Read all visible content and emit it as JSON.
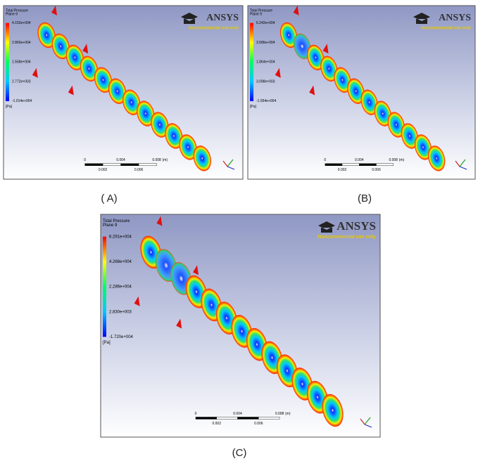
{
  "panels": [
    {
      "label": "( A)",
      "legend_title": "Total Pressure",
      "legend_subtitle": "Plane 9",
      "legend_values": [
        "4.152e+004",
        "2.860e+004",
        "1.568e+004",
        "2.772e+003",
        "-1.014e+004"
      ],
      "legend_unit": "[Pa]",
      "logo": "ANSYS",
      "logo_note": "Noncommercial use only",
      "scale_top": [
        "0",
        "0.004",
        "0.008"
      ],
      "scale_unit": "(m)",
      "scale_bottom": [
        "0.002",
        "0.006"
      ]
    },
    {
      "label": "(B)",
      "legend_title": "Total Pressure",
      "legend_subtitle": "Plane 9",
      "legend_values": [
        "6.242e+004",
        "3.586e+004",
        "1.864e+004",
        "3.098e+003",
        "-1.554e+004"
      ],
      "legend_unit": "[Pa]",
      "logo": "ANSYS",
      "logo_note": "Noncommercial use only",
      "scale_top": [
        "0",
        "0.004",
        "0.008"
      ],
      "scale_unit": "(m)",
      "scale_bottom": [
        "0.002",
        "0.006"
      ]
    },
    {
      "label": "(C)",
      "legend_title": "Total Pressure",
      "legend_subtitle": "Plane 9",
      "legend_values": [
        "6.291e+004",
        "4.268e+004",
        "2.286e+004",
        "2.830e+003",
        "-1.720e+004"
      ],
      "legend_unit": "[Pa]",
      "logo": "ANSYS",
      "logo_note": "Noncommercial use only",
      "scale_top": [
        "0",
        "0.004",
        "0.008"
      ],
      "scale_unit": "(m)",
      "scale_bottom": [
        "0.002",
        "0.006"
      ]
    }
  ]
}
